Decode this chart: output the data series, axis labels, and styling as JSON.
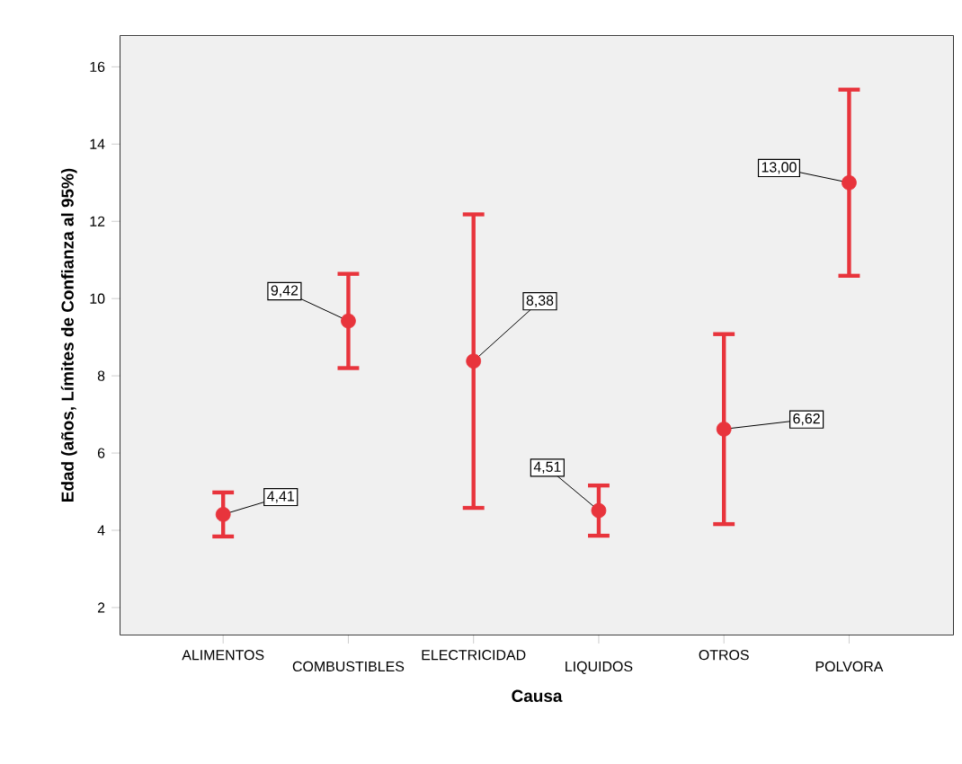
{
  "chart_data": {
    "type": "scatter",
    "xlabel": "Causa",
    "ylabel": "Edad (años, Límites de Confianza al 95%)",
    "categories": [
      "ALIMENTOS",
      "COMBUSTIBLES",
      "ELECTRICIDAD",
      "LIQUIDOS",
      "OTROS",
      "POLVORA"
    ],
    "values": [
      4.41,
      9.42,
      8.38,
      4.51,
      6.62,
      13.0
    ],
    "errors": [
      0.57,
      1.22,
      3.8,
      0.65,
      2.46,
      2.41
    ],
    "value_labels": [
      "4,41",
      "9,42",
      "8,38",
      "4,51",
      "6,62",
      "13,00"
    ],
    "color": "#e8343c",
    "marker": "circle",
    "ylim": [
      1.3,
      16.8
    ],
    "yticks": [
      2,
      4,
      6,
      8,
      10,
      12,
      14,
      16
    ]
  }
}
